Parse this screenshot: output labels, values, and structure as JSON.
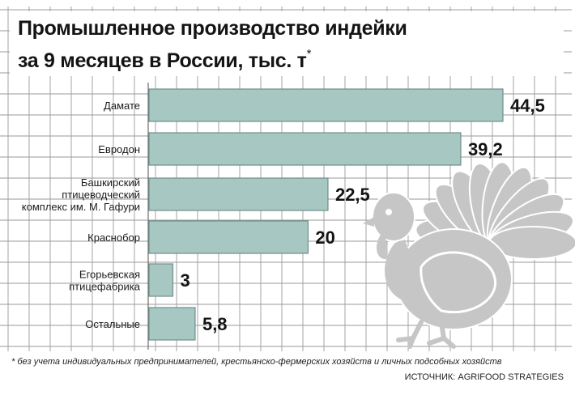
{
  "title_line1": "Промышленное производство индейки",
  "title_line2": "за 9 месяцев в России, тыс. т",
  "title_mark": "*",
  "footnote": "*  без учета индивидуальных предпринимателей, крестьянско-фермерских хозяйств и личных подсобных хозяйств",
  "source": "ИСТОЧНИК: AGRIFOOD STRATEGIES",
  "colors": {
    "bar_fill": "#a7c7c2",
    "bar_edge": "#6f8f8a",
    "grid_line": "#9a9a9a",
    "turkey": "#c6c6c6"
  },
  "chart_data": {
    "type": "bar",
    "orientation": "horizontal",
    "categories": [
      [
        "Дамате"
      ],
      [
        "Евродон"
      ],
      [
        "Башкирский",
        "птицеводческий",
        "комплекс им. М. Гафури"
      ],
      [
        "Краснобор"
      ],
      [
        "Егорьевская",
        "птицефабрика"
      ],
      [
        "Остальные"
      ]
    ],
    "values": [
      44.5,
      39.2,
      22.5,
      20,
      3,
      5.8
    ],
    "value_labels": [
      "44,5",
      "39,2",
      "22,5",
      "20",
      "3",
      "5,8"
    ],
    "xlim": [
      0,
      44.5
    ],
    "grid": true,
    "unit": "тыс. т"
  }
}
